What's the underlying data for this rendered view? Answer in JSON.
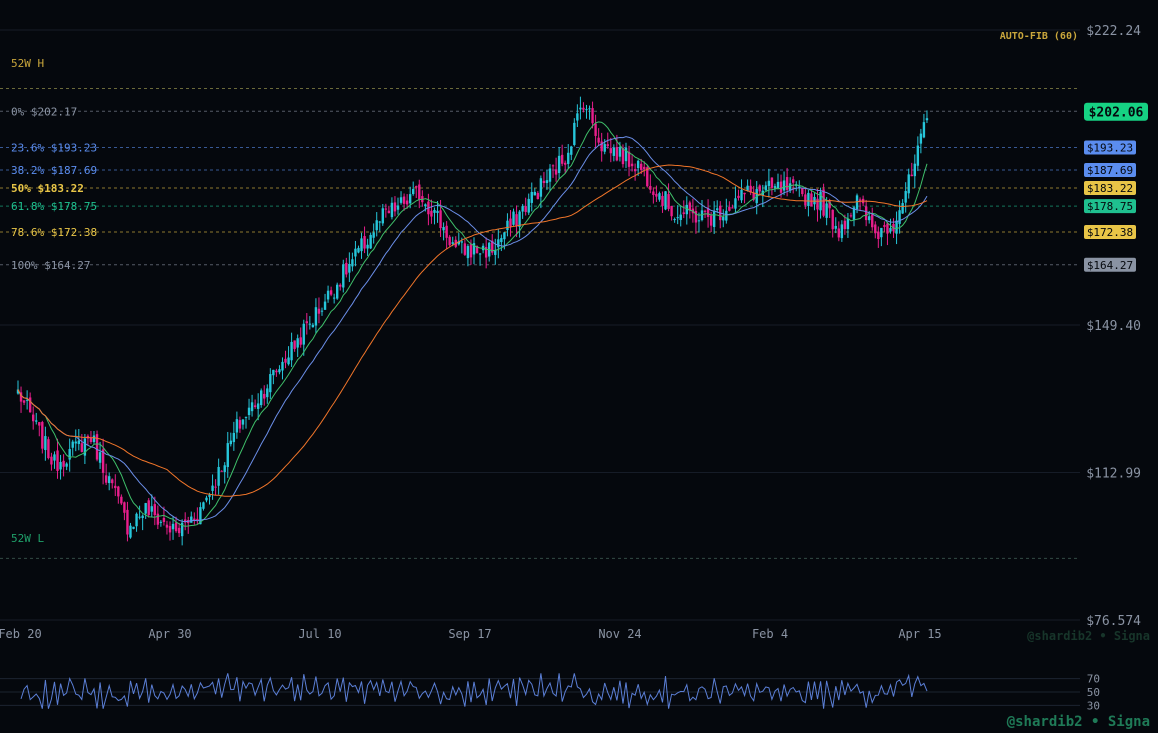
{
  "chart_data": {
    "type": "candlestick",
    "price_axis": {
      "min": 76.574,
      "max": 222.24,
      "ticks": [
        {
          "value": 222.24,
          "label": "$222.24"
        },
        {
          "value": 149.4,
          "label": "$149.40"
        },
        {
          "value": 112.99,
          "label": "$112.99"
        },
        {
          "value": 76.574,
          "label": "$76.574"
        }
      ]
    },
    "x_axis": {
      "ticks": [
        "Feb 20",
        "Apr 30",
        "Jul 10",
        "Sep 17",
        "Nov 24",
        "Feb 4",
        "Apr 15"
      ]
    },
    "indicator_title": "AUTO-FIB (60)",
    "week52": {
      "high_label": "52W H",
      "high": 207.8,
      "low_label": "52W L",
      "low": 91.8
    },
    "fib_levels": [
      {
        "label": "0% $202.17",
        "price": 202.17,
        "color": "#8a93a3",
        "badge": ""
      },
      {
        "label": "23.6% $193.23",
        "price": 193.23,
        "color": "#5b8def",
        "badge": "$193.23"
      },
      {
        "label": "38.2% $187.69",
        "price": 187.69,
        "color": "#5b8def",
        "badge": "$187.69"
      },
      {
        "label": "50% $183.22",
        "price": 183.22,
        "color": "#e8c547",
        "badge": "$183.22"
      },
      {
        "label": "61.8% $178.75",
        "price": 178.75,
        "color": "#1fc08f",
        "badge": "$178.75"
      },
      {
        "label": "78.6% $172.38",
        "price": 172.38,
        "color": "#e8c547",
        "badge": "$172.38"
      },
      {
        "label": "100% $164.27",
        "price": 164.27,
        "color": "#8a93a3",
        "badge": "$164.27"
      }
    ],
    "last_price": {
      "value": 202.06,
      "label": "$202.06"
    },
    "up_color": "#26c6da",
    "down_color": "#e91e8c",
    "ma_colors": {
      "fast": "#3fbf6a",
      "mid": "#6b8ee8",
      "slow": "#f0752a"
    },
    "ma_periods": {
      "fast": 10,
      "mid": 20,
      "slow": 50
    },
    "candle_count": 300,
    "close_anchors": [
      [
        0,
        133
      ],
      [
        12,
        115
      ],
      [
        24,
        122
      ],
      [
        36,
        100
      ],
      [
        42,
        104
      ],
      [
        52,
        98
      ],
      [
        60,
        104
      ],
      [
        66,
        113
      ],
      [
        72,
        124
      ],
      [
        84,
        137
      ],
      [
        96,
        150
      ],
      [
        108,
        163
      ],
      [
        120,
        176
      ],
      [
        132,
        182
      ],
      [
        138,
        176
      ],
      [
        144,
        168
      ],
      [
        156,
        168
      ],
      [
        168,
        180
      ],
      [
        180,
        191
      ],
      [
        186,
        205
      ],
      [
        192,
        194
      ],
      [
        204,
        189
      ],
      [
        216,
        177
      ],
      [
        228,
        176
      ],
      [
        240,
        182
      ],
      [
        252,
        183
      ],
      [
        264,
        180
      ],
      [
        270,
        173
      ],
      [
        276,
        180
      ],
      [
        282,
        172
      ],
      [
        288,
        175
      ],
      [
        294,
        186
      ],
      [
        300,
        203
      ]
    ]
  },
  "rsi": {
    "levels": [
      {
        "value": 70,
        "label": "70"
      },
      {
        "value": 50,
        "label": "50"
      },
      {
        "value": 30,
        "label": "30"
      }
    ],
    "color": "#5b7fd6"
  },
  "watermark": "@shardib2 • Signa",
  "colors": {
    "background": "#05080d",
    "grid": "#161c27",
    "axis_text": "#8a93a3"
  }
}
